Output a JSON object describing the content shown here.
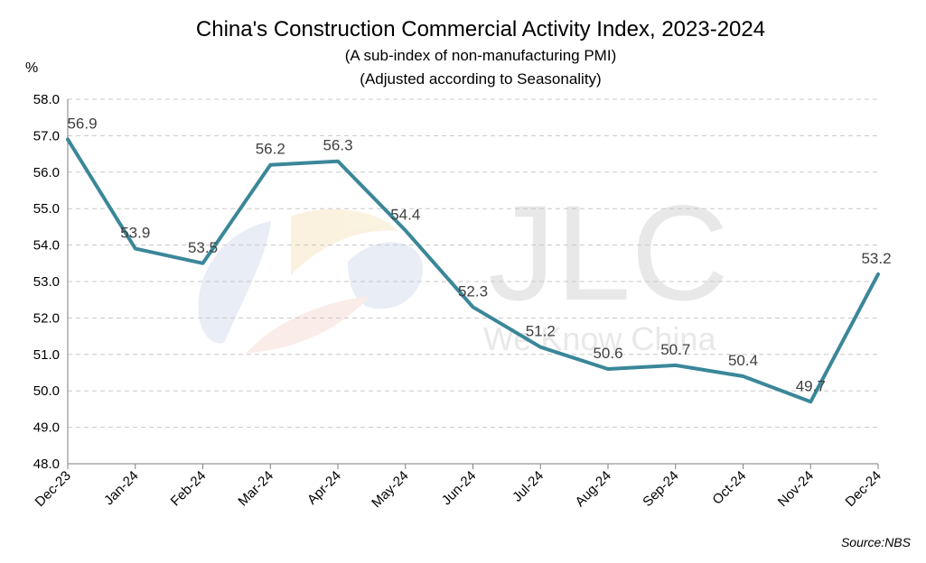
{
  "chart_data": {
    "type": "line",
    "title": "China's Construction Commercial Activity Index, 2023-2024",
    "subtitle_lines": [
      "(A sub-index of non-manufacturing PMI)",
      "(Adjusted according to Seasonality)"
    ],
    "ylabel": "%",
    "ylim": [
      48.0,
      58.0
    ],
    "ytick_step": 1.0,
    "grid": "horizontal",
    "categories": [
      "Dec-23",
      "Jan-24",
      "Feb-24",
      "Mar-24",
      "Apr-24",
      "May-24",
      "Jun-24",
      "Jul-24",
      "Aug-24",
      "Sep-24",
      "Oct-24",
      "Nov-24",
      "Dec-24"
    ],
    "values": [
      56.9,
      53.9,
      53.5,
      56.2,
      56.3,
      54.4,
      52.3,
      51.2,
      50.6,
      50.7,
      50.4,
      49.7,
      53.2
    ],
    "line_color": "#3a8799",
    "source": "Source:NBS",
    "watermark": {
      "logo": "JLC",
      "tagline": "We Know China"
    }
  }
}
